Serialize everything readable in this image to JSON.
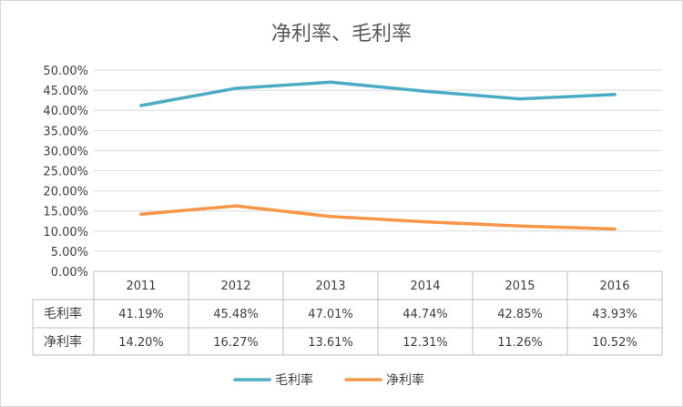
{
  "chart_data": {
    "type": "line",
    "title": "净利率、毛利率",
    "categories": [
      "2011",
      "2012",
      "2013",
      "2014",
      "2015",
      "2016"
    ],
    "series": [
      {
        "name": "毛利率",
        "values": [
          41.19,
          45.48,
          47.01,
          44.74,
          42.85,
          43.93
        ],
        "labels": [
          "41.19%",
          "45.48%",
          "47.01%",
          "44.74%",
          "42.85%",
          "43.93%"
        ],
        "color": "#4bacc6"
      },
      {
        "name": "净利率",
        "values": [
          14.2,
          16.27,
          13.61,
          12.31,
          11.26,
          10.52
        ],
        "labels": [
          "14.20%",
          "16.27%",
          "13.61%",
          "12.31%",
          "11.26%",
          "10.52%"
        ],
        "color": "#f79646"
      }
    ],
    "y_ticks": [
      "0.00%",
      "5.00%",
      "10.00%",
      "15.00%",
      "20.00%",
      "25.00%",
      "30.00%",
      "35.00%",
      "40.00%",
      "45.00%",
      "50.00%"
    ],
    "ylim": [
      0,
      50
    ],
    "grid": true,
    "legend_position": "bottom",
    "data_table": true
  }
}
